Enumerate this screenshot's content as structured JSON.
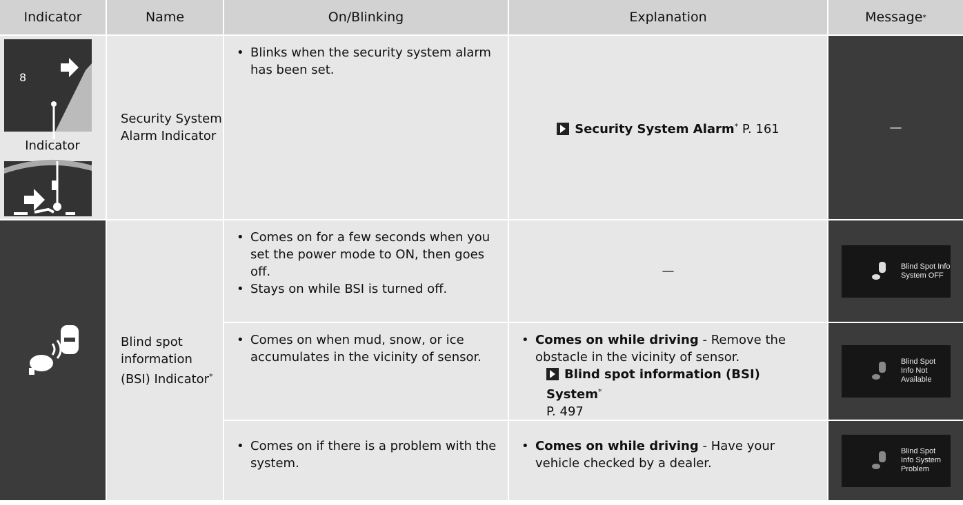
{
  "header": {
    "indicator": "Indicator",
    "name": "Name",
    "on_blinking": "On/Blinking",
    "explanation": "Explanation",
    "message": "Message",
    "message_mark": "*"
  },
  "rows": [
    {
      "indicator": {
        "digit": "8",
        "label": "Indicator"
      },
      "name": "Security System Alarm Indicator",
      "entries": [
        {
          "on_blinking": [
            "Blinks when the security system alarm has been set."
          ],
          "explanation": {
            "ref": "Security System Alarm",
            "ref_mark": "*",
            "page": "P. 161"
          },
          "message": "—"
        }
      ]
    },
    {
      "name": "Blind spot information (BSI) Indicator",
      "name_mark": "*",
      "entries": [
        {
          "on_blinking": [
            "Comes on for a few seconds when you set the power mode to ON, then goes off.",
            "Stays on while BSI is turned off."
          ],
          "explanation": {
            "text": "—"
          },
          "message": [
            "Blind Spot Info",
            "System OFF"
          ]
        },
        {
          "on_blinking": [
            "Comes on when mud, snow, or ice accumulates in the vicinity of sensor."
          ],
          "explanation": {
            "lead": "Comes on while driving",
            "text": " - Remove the obstacle in the vicinity of sensor.",
            "ref": "Blind spot information (BSI) System",
            "ref_mark": "*",
            "page": "P. 497"
          },
          "message": [
            "Blind Spot",
            "Info Not",
            "Available"
          ]
        },
        {
          "on_blinking": [
            "Comes on if there is a problem with the system."
          ],
          "explanation": {
            "lead": "Comes on while driving",
            "text": " - Have your vehicle checked by a dealer."
          },
          "message": [
            "Blind Spot",
            "Info System",
            "Problem"
          ]
        }
      ]
    }
  ]
}
